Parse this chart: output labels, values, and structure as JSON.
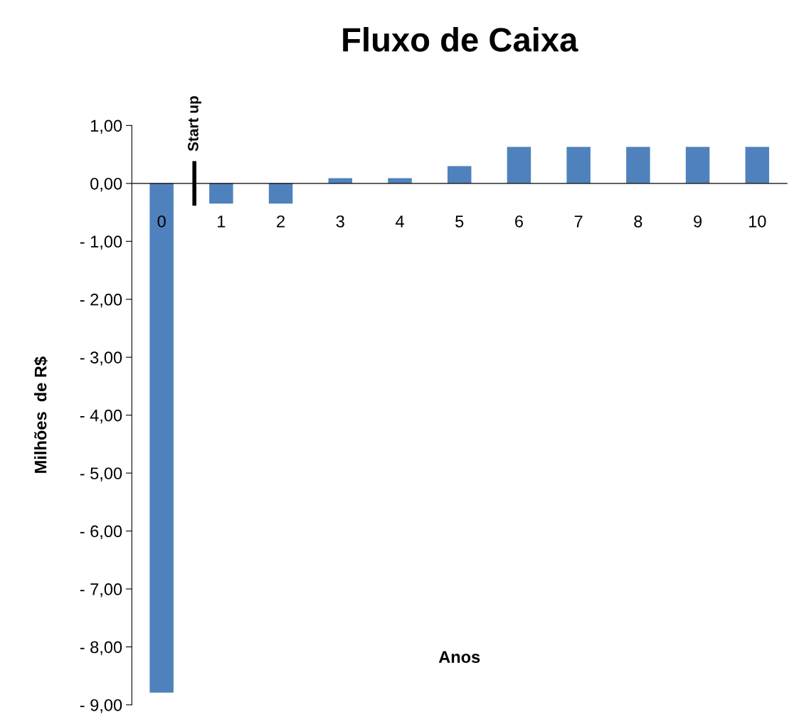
{
  "chart_data": {
    "type": "bar",
    "title": "Fluxo de Caixa",
    "xlabel": "Anos",
    "ylabel": "Milhões  de R$",
    "categories": [
      "0",
      "1",
      "2",
      "3",
      "4",
      "5",
      "6",
      "7",
      "8",
      "9",
      "10"
    ],
    "values": [
      -8.79,
      -0.35,
      -0.35,
      0.09,
      0.09,
      0.3,
      0.63,
      0.63,
      0.63,
      0.63,
      0.63
    ],
    "color": "#4f81bd",
    "ylim": [
      -9,
      1
    ],
    "yticks": [
      {
        "value": 1,
        "label": "1,00"
      },
      {
        "value": 0,
        "label": "0,00"
      },
      {
        "value": -1,
        "label": "- 1,00"
      },
      {
        "value": -2,
        "label": "- 2,00"
      },
      {
        "value": -3,
        "label": "- 3,00"
      },
      {
        "value": -4,
        "label": "- 4,00"
      },
      {
        "value": -5,
        "label": "- 5,00"
      },
      {
        "value": -6,
        "label": "- 6,00"
      },
      {
        "value": -7,
        "label": "- 7,00"
      },
      {
        "value": -8,
        "label": "- 8,00"
      },
      {
        "value": -9,
        "label": "- 9,00"
      }
    ],
    "annotations": [
      "Start up"
    ]
  }
}
